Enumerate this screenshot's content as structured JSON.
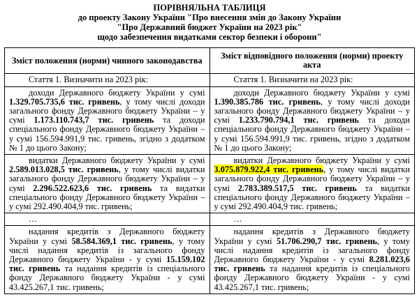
{
  "header": {
    "lines": [
      "ПОРІВНЯЛЬНА ТАБЛИЦЯ",
      "до проекту Закону України \"Про внесення змін до Закону України",
      "\"Про Державний бюджет України на 2023 рік\"",
      "щодо забезпечення видатками сектор безпеки і оборони\""
    ]
  },
  "table": {
    "columns": [
      "Зміст положення (норми) чинного законодавства",
      "Зміст відповідного положення (норми) проекту акта"
    ],
    "rows": [
      [
        [
          [
            {
              "text": "Стаття 1. Визначити на 2023 рік:"
            }
          ]
        ],
        [
          [
            {
              "text": "Стаття 1. Визначити на 2023 рік:"
            }
          ]
        ]
      ],
      [
        [
          [
            {
              "text": "доходи Державного бюджету України у сумі "
            },
            {
              "text": "1.329.705.735,6 тис. гривень",
              "bold": true
            },
            {
              "text": ", у тому числі доходи загального фонду Державного бюджету України – у сумі "
            },
            {
              "text": "1.173.110.743,7 тис. гривень",
              "bold": true
            },
            {
              "text": " та доходи спеціального фонду Державного бюджету України – у сумі 156.594.991,9 тис. гривень, згідно з додатком № 1 до цього Закону;"
            }
          ]
        ],
        [
          [
            {
              "text": "доходи Державного бюджету України у сумі "
            },
            {
              "text": "1.390.385.786 тис. гривень",
              "bold": true
            },
            {
              "text": ", у тому числі доходи загального фонду Державного бюджету України – у сумі "
            },
            {
              "text": "1.233.790.794,1 тис. гривень",
              "bold": true
            },
            {
              "text": " та доходи спеціального фонду Державного бюджету України – у сумі 156.594.991,9 тис. гривень, згідно з додатком № 1 до цього Закону;"
            }
          ]
        ]
      ],
      [
        [
          [
            {
              "text": "видатки Державного бюджету України у сумі "
            },
            {
              "text": "2.589.013.028,5 тис. гривень",
              "bold": true
            },
            {
              "text": ", у тому числі видатки загального фонду Державного бюджету України – у сумі "
            },
            {
              "text": "2.296.522.623,6 тис. гривень",
              "bold": true
            },
            {
              "text": " та видатки спеціального фонду Державного бюджету України – у сумі 292.490.404,9 тис. гривень;"
            }
          ]
        ],
        [
          [
            {
              "text": "видатки Державного бюджету України у сумі "
            },
            {
              "text": "3.075.879.922,4 тис. гривень",
              "bold": true,
              "highlight": true
            },
            {
              "text": ", у тому числі видатки загального фонду Державного бюджету України – у сумі "
            },
            {
              "text": "2.783.389.517,5 тис. гривень",
              "bold": true
            },
            {
              "text": " та видатки спеціального фонду Державного бюджету України – у сумі 292.490.404,9 тис. гривень;"
            }
          ]
        ]
      ],
      [
        [
          [
            {
              "text": "…"
            }
          ]
        ],
        [
          [
            {
              "text": "…"
            }
          ]
        ]
      ],
      [
        [
          [
            {
              "text": "надання кредитів з Державного бюджету України у сумі "
            },
            {
              "text": "58.584.369,1 тис. гривень",
              "bold": true
            },
            {
              "text": ", у тому числі надання кредитів із загального фонду Державного бюджету України - у сумі "
            },
            {
              "text": "15.159.102 тис. гривень",
              "bold": true
            },
            {
              "text": " та надання кредитів із спеціального фонду Державного бюджету України - у сумі 43.425.267,1 тис. гривень;"
            }
          ]
        ],
        [
          [
            {
              "text": "надання кредитів з Державного бюджету України у сумі "
            },
            {
              "text": "51.706.290,7 тис. гривень",
              "bold": true
            },
            {
              "text": ", у тому числі надання кредитів із загального фонду Державного бюджету України - у сумі "
            },
            {
              "text": "8.281.023,6 тис. гривень",
              "bold": true
            },
            {
              "text": " та надання кредитів із спеціального фонду Державного бюджету України - у сумі 43.425.267,1 тис. гривень;"
            }
          ]
        ]
      ]
    ]
  }
}
